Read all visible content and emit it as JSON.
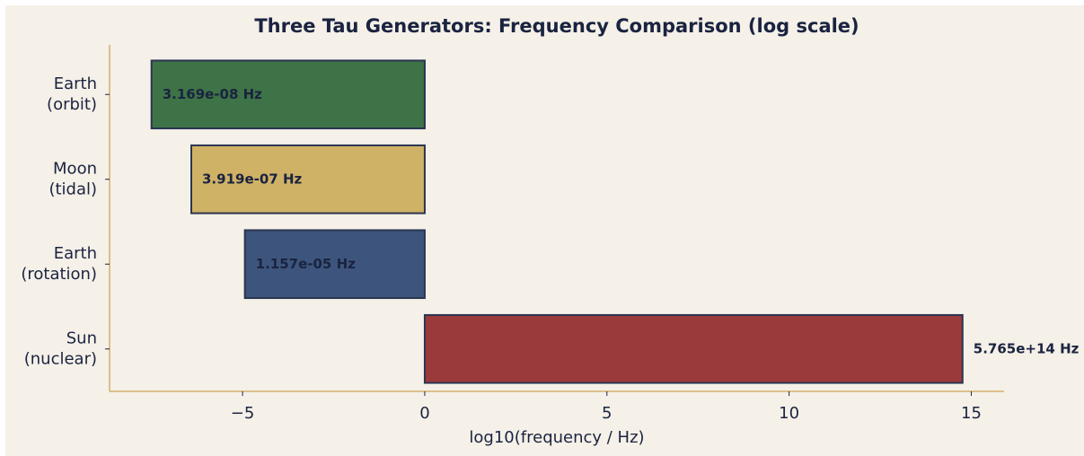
{
  "chart_data": {
    "type": "barh",
    "title": "Three Tau Generators: Frequency Comparison (log scale)",
    "xlabel": "log10(frequency / Hz)",
    "categories": [
      "Earth\n(orbit)",
      "Moon\n(tidal)",
      "Earth\n(rotation)",
      "Sun\n(nuclear)"
    ],
    "values": [
      -7.499,
      -6.4068,
      -4.9366,
      14.7608
    ],
    "value_labels": [
      "3.169e-08 Hz",
      "3.919e-07 Hz",
      "1.157e-05 Hz",
      "5.765e+14 Hz"
    ],
    "colors": [
      "#3d7346",
      "#cfb266",
      "#3d557c",
      "#9b3a3a"
    ],
    "xlim": [
      -8.65,
      15.9
    ],
    "xticks": [
      {
        "value": -5,
        "label": "−5"
      },
      0,
      5,
      10,
      15
    ],
    "grid": false
  }
}
